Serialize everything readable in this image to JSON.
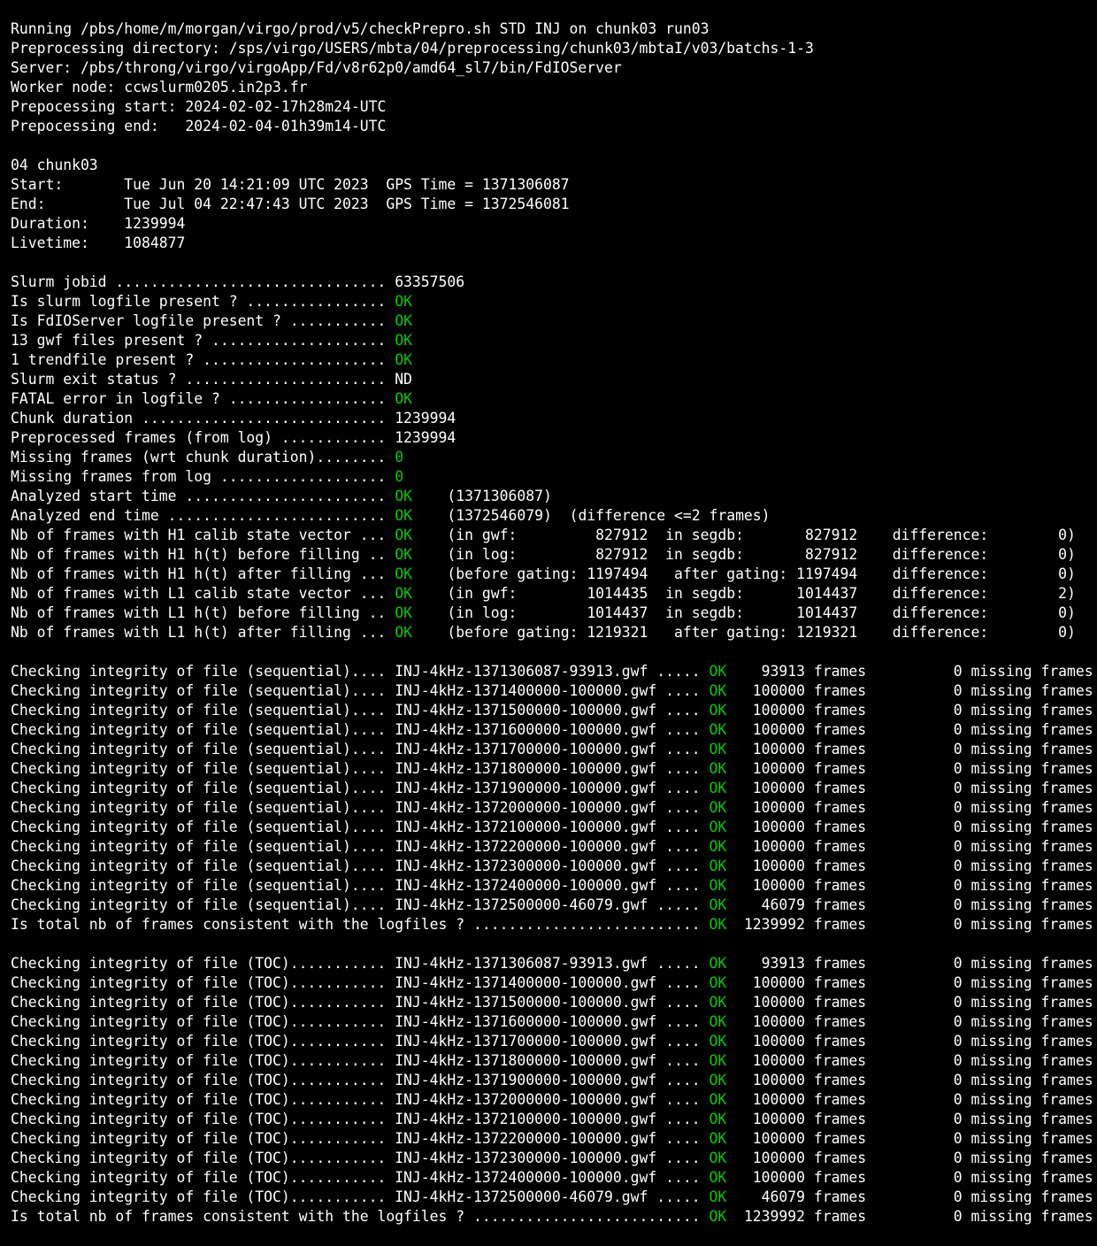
{
  "colors": {
    "background": "#000000",
    "text_white": "#ffffff",
    "status_green": "#00cc00"
  },
  "terminal": {
    "lines": [
      {
        "segments": [
          {
            "text": "Running /pbs/home/m/morgan/virgo/prod/v5/checkPrepro.sh STD INJ on chunk03 run03",
            "color": "white"
          }
        ]
      },
      {
        "segments": [
          {
            "text": "Preprocessing directory: /sps/virgo/USERS/mbta/04/preprocessing/chunk03/mbtaI/v03/batchs-1-3",
            "color": "white"
          }
        ]
      },
      {
        "segments": [
          {
            "text": "Server: /pbs/throng/virgo/virgoApp/Fd/v8r62p0/amd64_sl7/bin/FdIOServer",
            "color": "white"
          }
        ]
      },
      {
        "segments": [
          {
            "text": "Worker node: ccwslurm0205.in2p3.fr",
            "color": "white"
          }
        ]
      },
      {
        "segments": [
          {
            "text": "Prepocessing start: 2024-02-02-17h28m24-UTC",
            "color": "white"
          }
        ]
      },
      {
        "segments": [
          {
            "text": "Prepocessing end:   2024-02-04-01h39m14-UTC",
            "color": "white"
          }
        ]
      },
      {
        "segments": []
      },
      {
        "segments": [
          {
            "text": "04 chunk03",
            "color": "white"
          }
        ]
      },
      {
        "segments": [
          {
            "text": "Start:       Tue Jun 20 14:21:09 UTC 2023  GPS Time = 1371306087",
            "color": "white"
          }
        ]
      },
      {
        "segments": [
          {
            "text": "End:         Tue Jul 04 22:47:43 UTC 2023  GPS Time = 1372546081",
            "color": "white"
          }
        ]
      },
      {
        "segments": [
          {
            "text": "Duration:    1239994",
            "color": "white"
          }
        ]
      },
      {
        "segments": [
          {
            "text": "Livetime:    1084877",
            "color": "white"
          }
        ]
      },
      {
        "segments": []
      },
      {
        "segments": [
          {
            "text": "Slurm jobid ............................... 63357506",
            "color": "white"
          }
        ]
      },
      {
        "segments": [
          {
            "text": "Is slurm logfile present ? ................ ",
            "color": "white"
          },
          {
            "text": "OK",
            "color": "green"
          }
        ]
      },
      {
        "segments": [
          {
            "text": "Is FdIOServer logfile present ? ........... ",
            "color": "white"
          },
          {
            "text": "OK",
            "color": "green"
          }
        ]
      },
      {
        "segments": [
          {
            "text": "13 gwf files present ? .................... ",
            "color": "white"
          },
          {
            "text": "OK",
            "color": "green"
          }
        ]
      },
      {
        "segments": [
          {
            "text": "1 trendfile present ? ..................... ",
            "color": "white"
          },
          {
            "text": "OK",
            "color": "green"
          }
        ]
      },
      {
        "segments": [
          {
            "text": "Slurm exit status ? ....................... ND",
            "color": "white"
          }
        ]
      },
      {
        "segments": [
          {
            "text": "FATAL error in logfile ? .................. ",
            "color": "white"
          },
          {
            "text": "OK",
            "color": "green"
          }
        ]
      },
      {
        "segments": [
          {
            "text": "Chunk duration ............................ 1239994",
            "color": "white"
          }
        ]
      },
      {
        "segments": [
          {
            "text": "Preprocessed frames (from log) ............ 1239994",
            "color": "white"
          }
        ]
      },
      {
        "segments": [
          {
            "text": "Missing frames (wrt chunk duration)........ ",
            "color": "white"
          },
          {
            "text": "0",
            "color": "green"
          }
        ]
      },
      {
        "segments": [
          {
            "text": "Missing frames from log ................... ",
            "color": "white"
          },
          {
            "text": "0",
            "color": "green"
          }
        ]
      },
      {
        "segments": [
          {
            "text": "Analyzed start time ....................... ",
            "color": "white"
          },
          {
            "text": "OK",
            "color": "green"
          },
          {
            "text": "    (1371306087)",
            "color": "white"
          }
        ]
      },
      {
        "segments": [
          {
            "text": "Analyzed end time ......................... ",
            "color": "white"
          },
          {
            "text": "OK",
            "color": "green"
          },
          {
            "text": "    (1372546079)  (difference <=2 frames)",
            "color": "white"
          }
        ]
      },
      {
        "segments": [
          {
            "text": "Nb of frames with H1 calib state vector ... ",
            "color": "white"
          },
          {
            "text": "OK",
            "color": "green"
          },
          {
            "text": "    (in gwf:         827912  in segdb:       827912    difference:        0)",
            "color": "white"
          }
        ]
      },
      {
        "segments": [
          {
            "text": "Nb of frames with H1 h(t) before filling .. ",
            "color": "white"
          },
          {
            "text": "OK",
            "color": "green"
          },
          {
            "text": "    (in log:         827912  in segdb:       827912    difference:        0)",
            "color": "white"
          }
        ]
      },
      {
        "segments": [
          {
            "text": "Nb of frames with H1 h(t) after filling ... ",
            "color": "white"
          },
          {
            "text": "OK",
            "color": "green"
          },
          {
            "text": "    (before gating: 1197494   after gating: 1197494    difference:        0)",
            "color": "white"
          }
        ]
      },
      {
        "segments": [
          {
            "text": "Nb of frames with L1 calib state vector ... ",
            "color": "white"
          },
          {
            "text": "OK",
            "color": "green"
          },
          {
            "text": "    (in gwf:        1014435  in segdb:      1014437    difference:        2)",
            "color": "white"
          }
        ]
      },
      {
        "segments": [
          {
            "text": "Nb of frames with L1 h(t) before filling .. ",
            "color": "white"
          },
          {
            "text": "OK",
            "color": "green"
          },
          {
            "text": "    (in log:        1014437  in segdb:      1014437    difference:        0)",
            "color": "white"
          }
        ]
      },
      {
        "segments": [
          {
            "text": "Nb of frames with L1 h(t) after filling ... ",
            "color": "white"
          },
          {
            "text": "OK",
            "color": "green"
          },
          {
            "text": "    (before gating: 1219321   after gating: 1219321    difference:        0)",
            "color": "white"
          }
        ]
      },
      {
        "segments": []
      },
      {
        "segments": [
          {
            "text": "Checking integrity of file (sequential).... INJ-4kHz-1371306087-93913.gwf ..... ",
            "color": "white"
          },
          {
            "text": "OK",
            "color": "green"
          },
          {
            "text": "    93913 frames          0 missing frames",
            "color": "white"
          }
        ]
      },
      {
        "segments": [
          {
            "text": "Checking integrity of file (sequential).... INJ-4kHz-1371400000-100000.gwf .... ",
            "color": "white"
          },
          {
            "text": "OK",
            "color": "green"
          },
          {
            "text": "   100000 frames          0 missing frames",
            "color": "white"
          }
        ]
      },
      {
        "segments": [
          {
            "text": "Checking integrity of file (sequential).... INJ-4kHz-1371500000-100000.gwf .... ",
            "color": "white"
          },
          {
            "text": "OK",
            "color": "green"
          },
          {
            "text": "   100000 frames          0 missing frames",
            "color": "white"
          }
        ]
      },
      {
        "segments": [
          {
            "text": "Checking integrity of file (sequential).... INJ-4kHz-1371600000-100000.gwf .... ",
            "color": "white"
          },
          {
            "text": "OK",
            "color": "green"
          },
          {
            "text": "   100000 frames          0 missing frames",
            "color": "white"
          }
        ]
      },
      {
        "segments": [
          {
            "text": "Checking integrity of file (sequential).... INJ-4kHz-1371700000-100000.gwf .... ",
            "color": "white"
          },
          {
            "text": "OK",
            "color": "green"
          },
          {
            "text": "   100000 frames          0 missing frames",
            "color": "white"
          }
        ]
      },
      {
        "segments": [
          {
            "text": "Checking integrity of file (sequential).... INJ-4kHz-1371800000-100000.gwf .... ",
            "color": "white"
          },
          {
            "text": "OK",
            "color": "green"
          },
          {
            "text": "   100000 frames          0 missing frames",
            "color": "white"
          }
        ]
      },
      {
        "segments": [
          {
            "text": "Checking integrity of file (sequential).... INJ-4kHz-1371900000-100000.gwf .... ",
            "color": "white"
          },
          {
            "text": "OK",
            "color": "green"
          },
          {
            "text": "   100000 frames          0 missing frames",
            "color": "white"
          }
        ]
      },
      {
        "segments": [
          {
            "text": "Checking integrity of file (sequential).... INJ-4kHz-1372000000-100000.gwf .... ",
            "color": "white"
          },
          {
            "text": "OK",
            "color": "green"
          },
          {
            "text": "   100000 frames          0 missing frames",
            "color": "white"
          }
        ]
      },
      {
        "segments": [
          {
            "text": "Checking integrity of file (sequential).... INJ-4kHz-1372100000-100000.gwf .... ",
            "color": "white"
          },
          {
            "text": "OK",
            "color": "green"
          },
          {
            "text": "   100000 frames          0 missing frames",
            "color": "white"
          }
        ]
      },
      {
        "segments": [
          {
            "text": "Checking integrity of file (sequential).... INJ-4kHz-1372200000-100000.gwf .... ",
            "color": "white"
          },
          {
            "text": "OK",
            "color": "green"
          },
          {
            "text": "   100000 frames          0 missing frames",
            "color": "white"
          }
        ]
      },
      {
        "segments": [
          {
            "text": "Checking integrity of file (sequential).... INJ-4kHz-1372300000-100000.gwf .... ",
            "color": "white"
          },
          {
            "text": "OK",
            "color": "green"
          },
          {
            "text": "   100000 frames          0 missing frames",
            "color": "white"
          }
        ]
      },
      {
        "segments": [
          {
            "text": "Checking integrity of file (sequential).... INJ-4kHz-1372400000-100000.gwf .... ",
            "color": "white"
          },
          {
            "text": "OK",
            "color": "green"
          },
          {
            "text": "   100000 frames          0 missing frames",
            "color": "white"
          }
        ]
      },
      {
        "segments": [
          {
            "text": "Checking integrity of file (sequential).... INJ-4kHz-1372500000-46079.gwf ..... ",
            "color": "white"
          },
          {
            "text": "OK",
            "color": "green"
          },
          {
            "text": "    46079 frames          0 missing frames",
            "color": "white"
          }
        ]
      },
      {
        "segments": [
          {
            "text": "Is total nb of frames consistent with the logfiles ? .......................... ",
            "color": "white"
          },
          {
            "text": "OK",
            "color": "green"
          },
          {
            "text": "  1239992 frames          0 missing frames",
            "color": "white"
          }
        ]
      },
      {
        "segments": []
      },
      {
        "segments": [
          {
            "text": "Checking integrity of file (TOC)........... INJ-4kHz-1371306087-93913.gwf ..... ",
            "color": "white"
          },
          {
            "text": "OK",
            "color": "green"
          },
          {
            "text": "    93913 frames          0 missing frames",
            "color": "white"
          }
        ]
      },
      {
        "segments": [
          {
            "text": "Checking integrity of file (TOC)........... INJ-4kHz-1371400000-100000.gwf .... ",
            "color": "white"
          },
          {
            "text": "OK",
            "color": "green"
          },
          {
            "text": "   100000 frames          0 missing frames",
            "color": "white"
          }
        ]
      },
      {
        "segments": [
          {
            "text": "Checking integrity of file (TOC)........... INJ-4kHz-1371500000-100000.gwf .... ",
            "color": "white"
          },
          {
            "text": "OK",
            "color": "green"
          },
          {
            "text": "   100000 frames          0 missing frames",
            "color": "white"
          }
        ]
      },
      {
        "segments": [
          {
            "text": "Checking integrity of file (TOC)........... INJ-4kHz-1371600000-100000.gwf .... ",
            "color": "white"
          },
          {
            "text": "OK",
            "color": "green"
          },
          {
            "text": "   100000 frames          0 missing frames",
            "color": "white"
          }
        ]
      },
      {
        "segments": [
          {
            "text": "Checking integrity of file (TOC)........... INJ-4kHz-1371700000-100000.gwf .... ",
            "color": "white"
          },
          {
            "text": "OK",
            "color": "green"
          },
          {
            "text": "   100000 frames          0 missing frames",
            "color": "white"
          }
        ]
      },
      {
        "segments": [
          {
            "text": "Checking integrity of file (TOC)........... INJ-4kHz-1371800000-100000.gwf .... ",
            "color": "white"
          },
          {
            "text": "OK",
            "color": "green"
          },
          {
            "text": "   100000 frames          0 missing frames",
            "color": "white"
          }
        ]
      },
      {
        "segments": [
          {
            "text": "Checking integrity of file (TOC)........... INJ-4kHz-1371900000-100000.gwf .... ",
            "color": "white"
          },
          {
            "text": "OK",
            "color": "green"
          },
          {
            "text": "   100000 frames          0 missing frames",
            "color": "white"
          }
        ]
      },
      {
        "segments": [
          {
            "text": "Checking integrity of file (TOC)........... INJ-4kHz-1372000000-100000.gwf .... ",
            "color": "white"
          },
          {
            "text": "OK",
            "color": "green"
          },
          {
            "text": "   100000 frames          0 missing frames",
            "color": "white"
          }
        ]
      },
      {
        "segments": [
          {
            "text": "Checking integrity of file (TOC)........... INJ-4kHz-1372100000-100000.gwf .... ",
            "color": "white"
          },
          {
            "text": "OK",
            "color": "green"
          },
          {
            "text": "   100000 frames          0 missing frames",
            "color": "white"
          }
        ]
      },
      {
        "segments": [
          {
            "text": "Checking integrity of file (TOC)........... INJ-4kHz-1372200000-100000.gwf .... ",
            "color": "white"
          },
          {
            "text": "OK",
            "color": "green"
          },
          {
            "text": "   100000 frames          0 missing frames",
            "color": "white"
          }
        ]
      },
      {
        "segments": [
          {
            "text": "Checking integrity of file (TOC)........... INJ-4kHz-1372300000-100000.gwf .... ",
            "color": "white"
          },
          {
            "text": "OK",
            "color": "green"
          },
          {
            "text": "   100000 frames          0 missing frames",
            "color": "white"
          }
        ]
      },
      {
        "segments": [
          {
            "text": "Checking integrity of file (TOC)........... INJ-4kHz-1372400000-100000.gwf .... ",
            "color": "white"
          },
          {
            "text": "OK",
            "color": "green"
          },
          {
            "text": "   100000 frames          0 missing frames",
            "color": "white"
          }
        ]
      },
      {
        "segments": [
          {
            "text": "Checking integrity of file (TOC)........... INJ-4kHz-1372500000-46079.gwf ..... ",
            "color": "white"
          },
          {
            "text": "OK",
            "color": "green"
          },
          {
            "text": "    46079 frames          0 missing frames",
            "color": "white"
          }
        ]
      },
      {
        "segments": [
          {
            "text": "Is total nb of frames consistent with the logfiles ? .......................... ",
            "color": "white"
          },
          {
            "text": "OK",
            "color": "green"
          },
          {
            "text": "  1239992 frames          0 missing frames",
            "color": "white"
          }
        ]
      }
    ]
  }
}
